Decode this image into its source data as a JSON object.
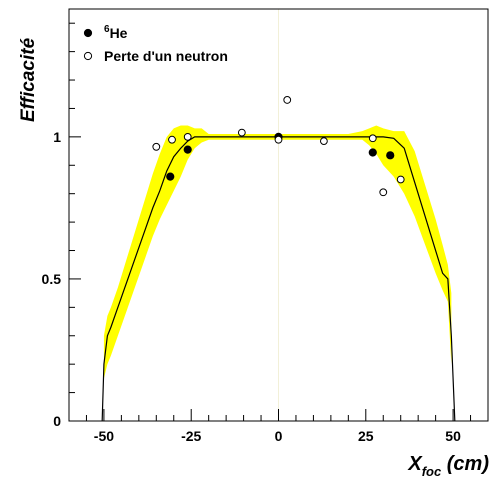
{
  "chart_data": {
    "type": "scatter",
    "xlabel": {
      "main": "X",
      "sub": "foc",
      "unit": " (cm)"
    },
    "ylabel": "Efficacité",
    "xlim": [
      -60,
      60
    ],
    "ylim": [
      0,
      1.45
    ],
    "x_ticks": [
      -50,
      -25,
      0,
      25,
      50
    ],
    "x_tick_labels": [
      "-50",
      "-25",
      "0",
      "25",
      "50"
    ],
    "y_ticks": [
      0,
      0.5,
      1
    ],
    "y_tick_labels": [
      "0",
      "0.5",
      "1"
    ],
    "grid": false,
    "legend_position": "top-left",
    "legend": [
      {
        "marker": "filled-circle",
        "sup": "6",
        "label": "He"
      },
      {
        "marker": "open-circle",
        "sup": "",
        "label": "Perte d'un neutron"
      }
    ],
    "series": [
      {
        "marker": "filled-circle",
        "x": [
          -31,
          -26,
          0,
          27,
          32
        ],
        "y": [
          0.86,
          0.955,
          1.0,
          0.945,
          0.935
        ]
      },
      {
        "marker": "open-circle",
        "x": [
          -35,
          -30.5,
          -26,
          -10.5,
          0,
          2.5,
          13,
          27,
          30,
          35
        ],
        "y": [
          0.965,
          0.99,
          1.0,
          1.015,
          0.99,
          1.13,
          0.985,
          0.995,
          0.805,
          0.85
        ]
      }
    ],
    "model_curve": {
      "color": "#000000",
      "x": [
        -50.5,
        -50,
        -49,
        -48,
        -46,
        -44,
        -42,
        -40,
        -38,
        -36,
        -34,
        -32,
        -30,
        -28,
        -26,
        -24,
        -20,
        0,
        20,
        25,
        30,
        33,
        36,
        39,
        42,
        45,
        47,
        48.5,
        49.5,
        50.5
      ],
      "y": [
        0.0,
        0.2,
        0.3,
        0.33,
        0.4,
        0.47,
        0.54,
        0.61,
        0.68,
        0.75,
        0.81,
        0.88,
        0.93,
        0.96,
        0.985,
        1.0,
        1.0,
        1.0,
        1.0,
        1.0,
        1.0,
        0.995,
        0.96,
        0.84,
        0.72,
        0.6,
        0.52,
        0.5,
        0.3,
        0.0
      ]
    },
    "uncertainty_band": {
      "color": "#ffff00",
      "x": [
        -50,
        -49,
        -48,
        -46,
        -44,
        -42,
        -40,
        -38,
        -36,
        -34,
        -32,
        -30,
        -28,
        -26,
        -24,
        -22,
        -20,
        0,
        20,
        24,
        26,
        28,
        30,
        33,
        36,
        39,
        42,
        45,
        47,
        48.5,
        49.5
      ],
      "low": [
        0.15,
        0.2,
        0.23,
        0.3,
        0.37,
        0.44,
        0.51,
        0.58,
        0.65,
        0.71,
        0.76,
        0.81,
        0.86,
        0.92,
        0.96,
        0.98,
        0.99,
        0.99,
        0.99,
        0.99,
        0.97,
        0.94,
        0.9,
        0.86,
        0.8,
        0.72,
        0.62,
        0.52,
        0.46,
        0.42,
        0.2
      ],
      "high": [
        0.3,
        0.37,
        0.4,
        0.47,
        0.55,
        0.63,
        0.71,
        0.79,
        0.87,
        0.94,
        1.0,
        1.03,
        1.04,
        1.04,
        1.03,
        1.03,
        1.01,
        1.01,
        1.01,
        1.02,
        1.03,
        1.04,
        1.03,
        1.02,
        1.02,
        0.95,
        0.83,
        0.71,
        0.62,
        0.55,
        0.45
      ]
    }
  }
}
